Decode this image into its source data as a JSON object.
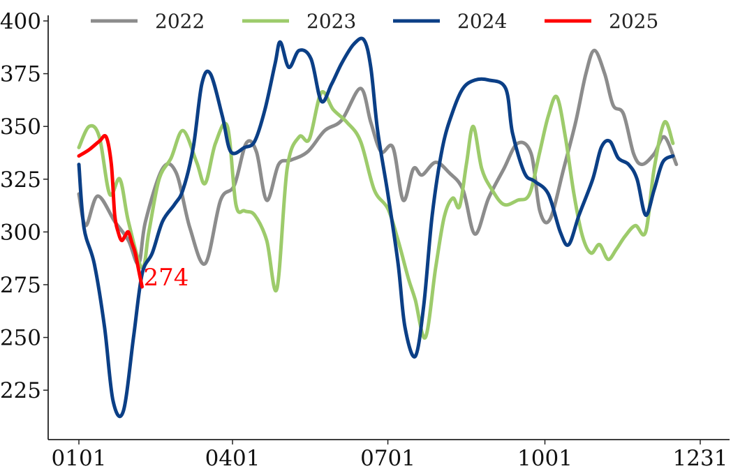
{
  "chart_data": {
    "type": "line",
    "title": "",
    "xlabel": "",
    "ylabel": "",
    "x_ticks": [
      "0101",
      "0401",
      "0701",
      "1001",
      "1231"
    ],
    "x_tick_days": [
      1,
      91,
      182,
      274,
      365
    ],
    "xlim": [
      1,
      365
    ],
    "y_ticks": [
      "225",
      "250",
      "275",
      "300",
      "325",
      "350",
      "375",
      "400"
    ],
    "ylim": [
      203,
      400
    ],
    "grid": false,
    "legend": {
      "position": "top",
      "orientation": "horizontal"
    },
    "series": [
      {
        "name": "2022",
        "color": "#8c8c8c",
        "points": [
          [
            1,
            318
          ],
          [
            5,
            303
          ],
          [
            12,
            317
          ],
          [
            22,
            305
          ],
          [
            30,
            296
          ],
          [
            36,
            285
          ],
          [
            40,
            305
          ],
          [
            50,
            330
          ],
          [
            58,
            328
          ],
          [
            66,
            302
          ],
          [
            75,
            285
          ],
          [
            84,
            315
          ],
          [
            92,
            322
          ],
          [
            99,
            342
          ],
          [
            105,
            338
          ],
          [
            111,
            315
          ],
          [
            118,
            332
          ],
          [
            125,
            334
          ],
          [
            135,
            338
          ],
          [
            145,
            348
          ],
          [
            155,
            353
          ],
          [
            166,
            368
          ],
          [
            172,
            352
          ],
          [
            178,
            338
          ],
          [
            185,
            340
          ],
          [
            191,
            315
          ],
          [
            197,
            330
          ],
          [
            202,
            327
          ],
          [
            210,
            333
          ],
          [
            218,
            328
          ],
          [
            226,
            320
          ],
          [
            233,
            299
          ],
          [
            241,
            316
          ],
          [
            250,
            330
          ],
          [
            258,
            342
          ],
          [
            266,
            337
          ],
          [
            271,
            310
          ],
          [
            277,
            306
          ],
          [
            285,
            330
          ],
          [
            292,
            352
          ],
          [
            298,
            375
          ],
          [
            303,
            386
          ],
          [
            309,
            375
          ],
          [
            314,
            360
          ],
          [
            320,
            356
          ],
          [
            326,
            337
          ],
          [
            331,
            332
          ],
          [
            338,
            337
          ],
          [
            344,
            345
          ],
          [
            351,
            332
          ]
        ]
      },
      {
        "name": "2023",
        "color": "#9dcb6b",
        "points": [
          [
            1,
            340
          ],
          [
            7,
            350
          ],
          [
            13,
            345
          ],
          [
            19,
            318
          ],
          [
            25,
            325
          ],
          [
            30,
            305
          ],
          [
            38,
            283
          ],
          [
            42,
            300
          ],
          [
            48,
            325
          ],
          [
            55,
            335
          ],
          [
            62,
            348
          ],
          [
            70,
            333
          ],
          [
            75,
            323
          ],
          [
            81,
            342
          ],
          [
            88,
            350
          ],
          [
            93,
            313
          ],
          [
            98,
            310
          ],
          [
            104,
            308
          ],
          [
            111,
            296
          ],
          [
            117,
            273
          ],
          [
            123,
            330
          ],
          [
            130,
            345
          ],
          [
            136,
            344
          ],
          [
            143,
            366
          ],
          [
            150,
            358
          ],
          [
            158,
            352
          ],
          [
            166,
            343
          ],
          [
            174,
            320
          ],
          [
            182,
            311
          ],
          [
            188,
            296
          ],
          [
            194,
            278
          ],
          [
            198,
            268
          ],
          [
            204,
            250
          ],
          [
            210,
            283
          ],
          [
            215,
            307
          ],
          [
            220,
            316
          ],
          [
            224,
            312
          ],
          [
            228,
            332
          ],
          [
            232,
            350
          ],
          [
            237,
            330
          ],
          [
            243,
            320
          ],
          [
            250,
            313
          ],
          [
            258,
            315
          ],
          [
            265,
            318
          ],
          [
            271,
            338
          ],
          [
            276,
            355
          ],
          [
            281,
            364
          ],
          [
            286,
            345
          ],
          [
            291,
            318
          ],
          [
            296,
            298
          ],
          [
            301,
            290
          ],
          [
            306,
            294
          ],
          [
            311,
            287
          ],
          [
            316,
            292
          ],
          [
            321,
            298
          ],
          [
            327,
            303
          ],
          [
            333,
            300
          ],
          [
            338,
            330
          ],
          [
            344,
            352
          ],
          [
            349,
            342
          ]
        ]
      },
      {
        "name": "2024",
        "color": "#0b3f86",
        "points": [
          [
            1,
            332
          ],
          [
            4,
            302
          ],
          [
            10,
            285
          ],
          [
            16,
            255
          ],
          [
            21,
            220
          ],
          [
            27,
            215
          ],
          [
            33,
            250
          ],
          [
            38,
            280
          ],
          [
            44,
            290
          ],
          [
            50,
            305
          ],
          [
            57,
            313
          ],
          [
            62,
            320
          ],
          [
            68,
            340
          ],
          [
            73,
            370
          ],
          [
            78,
            375
          ],
          [
            85,
            355
          ],
          [
            90,
            338
          ],
          [
            98,
            340
          ],
          [
            104,
            343
          ],
          [
            110,
            358
          ],
          [
            116,
            380
          ],
          [
            119,
            390
          ],
          [
            124,
            378
          ],
          [
            130,
            386
          ],
          [
            137,
            382
          ],
          [
            143,
            362
          ],
          [
            149,
            370
          ],
          [
            155,
            380
          ],
          [
            162,
            389
          ],
          [
            168,
            391
          ],
          [
            172,
            378
          ],
          [
            176,
            348
          ],
          [
            182,
            318
          ],
          [
            188,
            285
          ],
          [
            192,
            255
          ],
          [
            198,
            241
          ],
          [
            203,
            265
          ],
          [
            208,
            308
          ],
          [
            214,
            340
          ],
          [
            220,
            357
          ],
          [
            226,
            368
          ],
          [
            233,
            372
          ],
          [
            241,
            372
          ],
          [
            251,
            368
          ],
          [
            255,
            347
          ],
          [
            262,
            328
          ],
          [
            268,
            324
          ],
          [
            276,
            318
          ],
          [
            283,
            300
          ],
          [
            288,
            294
          ],
          [
            294,
            308
          ],
          [
            302,
            325
          ],
          [
            307,
            340
          ],
          [
            312,
            343
          ],
          [
            317,
            335
          ],
          [
            323,
            332
          ],
          [
            328,
            325
          ],
          [
            333,
            308
          ],
          [
            338,
            320
          ],
          [
            343,
            333
          ],
          [
            349,
            336
          ]
        ]
      },
      {
        "name": "2025",
        "color": "#ff0000",
        "points": [
          [
            1,
            336
          ],
          [
            7,
            339
          ],
          [
            13,
            343
          ],
          [
            17,
            345
          ],
          [
            20,
            332
          ],
          [
            22,
            308
          ],
          [
            24,
            300
          ],
          [
            26,
            296
          ],
          [
            28,
            298
          ],
          [
            30,
            300
          ],
          [
            32,
            295
          ],
          [
            34,
            290
          ],
          [
            36,
            282
          ],
          [
            38,
            274
          ]
        ],
        "last_value_label": "274"
      }
    ]
  }
}
